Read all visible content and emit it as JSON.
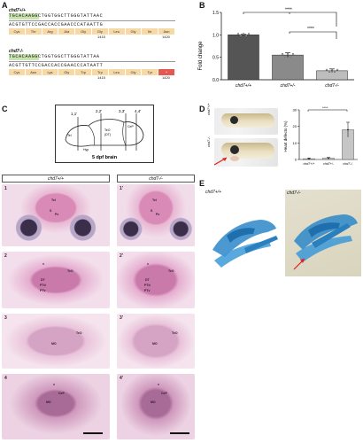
{
  "panel_a": {
    "letter": "A",
    "wt": {
      "genotype": "chd7+/+",
      "highlight": "TGCACAA",
      "seq_top": "TGCACAAGGCTGGTGGCTTGGGTATTAAC",
      "seq_bottom": "ACGTGTTCCGACCACCGAACCCATAATTG",
      "aa": [
        "Cys",
        "Thr",
        "Arg",
        "Ala",
        "Gly",
        "Gly",
        "Leu",
        "Gly",
        "Ile",
        "Asn"
      ],
      "pos1": "1415",
      "pos2": "1420"
    },
    "mut": {
      "genotype": "chd7-/-",
      "highlight": "TGCACAA",
      "seq_top": "TGCACAAGGCTGGTGGCTTGGGTATTAA",
      "seq_bottom": "ACGTTGTTCCGACCACCGAACCCATAATT",
      "aa": [
        "Cys",
        "Asn",
        "Lys",
        "Gly",
        "Trp",
        "Trp",
        "Leu",
        "Gly",
        "Tyr",
        "*"
      ],
      "pos1": "1415",
      "pos2": "1420"
    }
  },
  "panel_b": {
    "letter": "B",
    "sig_top": "****",
    "sig_bottom": "****",
    "chart_data": {
      "type": "bar",
      "categories": [
        "chd7+/+",
        "chd7+/-",
        "chd7-/-"
      ],
      "values": [
        1.0,
        0.55,
        0.2
      ],
      "errors": [
        0.01,
        0.05,
        0.04
      ],
      "ylabel": "Fold change",
      "ylim": [
        0,
        1.5
      ],
      "yticks": [
        "0.0",
        "0.5",
        "1.0",
        "1.5"
      ],
      "bar_colors": [
        "#555555",
        "#8a8a8a",
        "#bdbdbd"
      ]
    }
  },
  "panel_c": {
    "letter": "C",
    "schematic": {
      "title": "5 dpf brain",
      "labels": [
        "1,1'",
        "2,2'",
        "3,3'",
        "4,4'",
        "Tel",
        "Hyp",
        "TeO",
        "(DT)",
        "CeP"
      ]
    },
    "headers": {
      "wt": "chd7+/+",
      "mut": "chd7-/-"
    },
    "rows": [
      {
        "n_wt": "1",
        "n_mut": "1'",
        "labels": [
          "Tel",
          "S",
          "Pc",
          "Tel",
          "S",
          "Pc"
        ]
      },
      {
        "n_wt": "2",
        "n_mut": "2'",
        "labels": [
          "v",
          "TeO",
          "DT",
          "PTd",
          "PTv",
          "v",
          "TeO",
          "DT",
          "PTd",
          "PTv"
        ]
      },
      {
        "n_wt": "3",
        "n_mut": "3'",
        "labels": [
          "TeO",
          "MO",
          "TeO",
          "MO"
        ]
      },
      {
        "n_wt": "4",
        "n_mut": "4'",
        "labels": [
          "v",
          "CeP",
          "MO",
          "v",
          "CeP",
          "MO"
        ]
      }
    ]
  },
  "panel_d": {
    "letter": "D",
    "photo_labels": [
      "chd7+/+",
      "chd7-/-"
    ],
    "sig": "****",
    "chart_data": {
      "type": "bar",
      "categories": [
        "chd7+/+",
        "chd7+/-",
        "chd7-/-"
      ],
      "values": [
        0.5,
        0.8,
        18
      ],
      "errors": [
        0.3,
        0.4,
        4.5
      ],
      "ylabel": "Heart defects (%)",
      "ylim": [
        0,
        30
      ],
      "yticks": [
        "0",
        "10",
        "20",
        "30"
      ]
    }
  },
  "panel_e": {
    "letter": "E",
    "labels": [
      "chd7+/+",
      "chd7-/-"
    ]
  }
}
